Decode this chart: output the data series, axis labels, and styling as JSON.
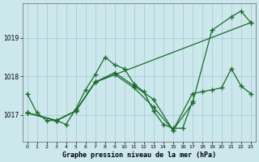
{
  "title": "Graphe pression niveau de la mer (hPa)",
  "background_color": "#cce8ed",
  "grid_color": "#aacdd4",
  "line_color": "#1a6b2a",
  "ylim": [
    1016.3,
    1019.9
  ],
  "yticks": [
    1017,
    1018,
    1019
  ],
  "xlim": [
    -0.5,
    23.5
  ],
  "xticks": [
    0,
    1,
    2,
    3,
    4,
    5,
    6,
    7,
    8,
    9,
    10,
    11,
    12,
    13,
    14,
    15,
    16,
    17,
    18,
    19,
    20,
    21,
    22,
    23
  ],
  "line1_x": [
    0,
    1,
    2,
    3,
    4,
    5,
    6,
    7,
    8,
    9,
    10,
    11,
    12,
    13,
    14,
    15,
    16,
    17
  ],
  "line1_y": [
    1017.55,
    1017.05,
    1016.85,
    1016.85,
    1016.75,
    1017.15,
    1017.65,
    1018.05,
    1018.5,
    1018.3,
    1018.2,
    1017.8,
    1017.6,
    1017.1,
    1016.75,
    1016.65,
    1016.65,
    1017.35
  ],
  "line2_x": [
    0,
    3,
    5,
    7,
    9,
    11,
    13,
    15,
    17,
    19,
    21,
    22,
    23
  ],
  "line2_y": [
    1017.05,
    1016.85,
    1017.1,
    1017.85,
    1018.1,
    1017.75,
    1017.4,
    1016.6,
    1017.3,
    1019.2,
    1019.55,
    1019.7,
    1019.4
  ],
  "line3_x": [
    0,
    3,
    5,
    7,
    9,
    11,
    13,
    15,
    17,
    18,
    19,
    20,
    21,
    22,
    23
  ],
  "line3_y": [
    1017.05,
    1016.85,
    1017.1,
    1017.85,
    1018.05,
    1017.7,
    1017.2,
    1016.6,
    1017.55,
    1017.6,
    1017.65,
    1017.7,
    1018.2,
    1017.75,
    1017.55
  ],
  "line4_x": [
    0,
    3,
    5,
    7,
    23
  ],
  "line4_y": [
    1017.05,
    1016.85,
    1017.1,
    1017.85,
    1019.4
  ]
}
